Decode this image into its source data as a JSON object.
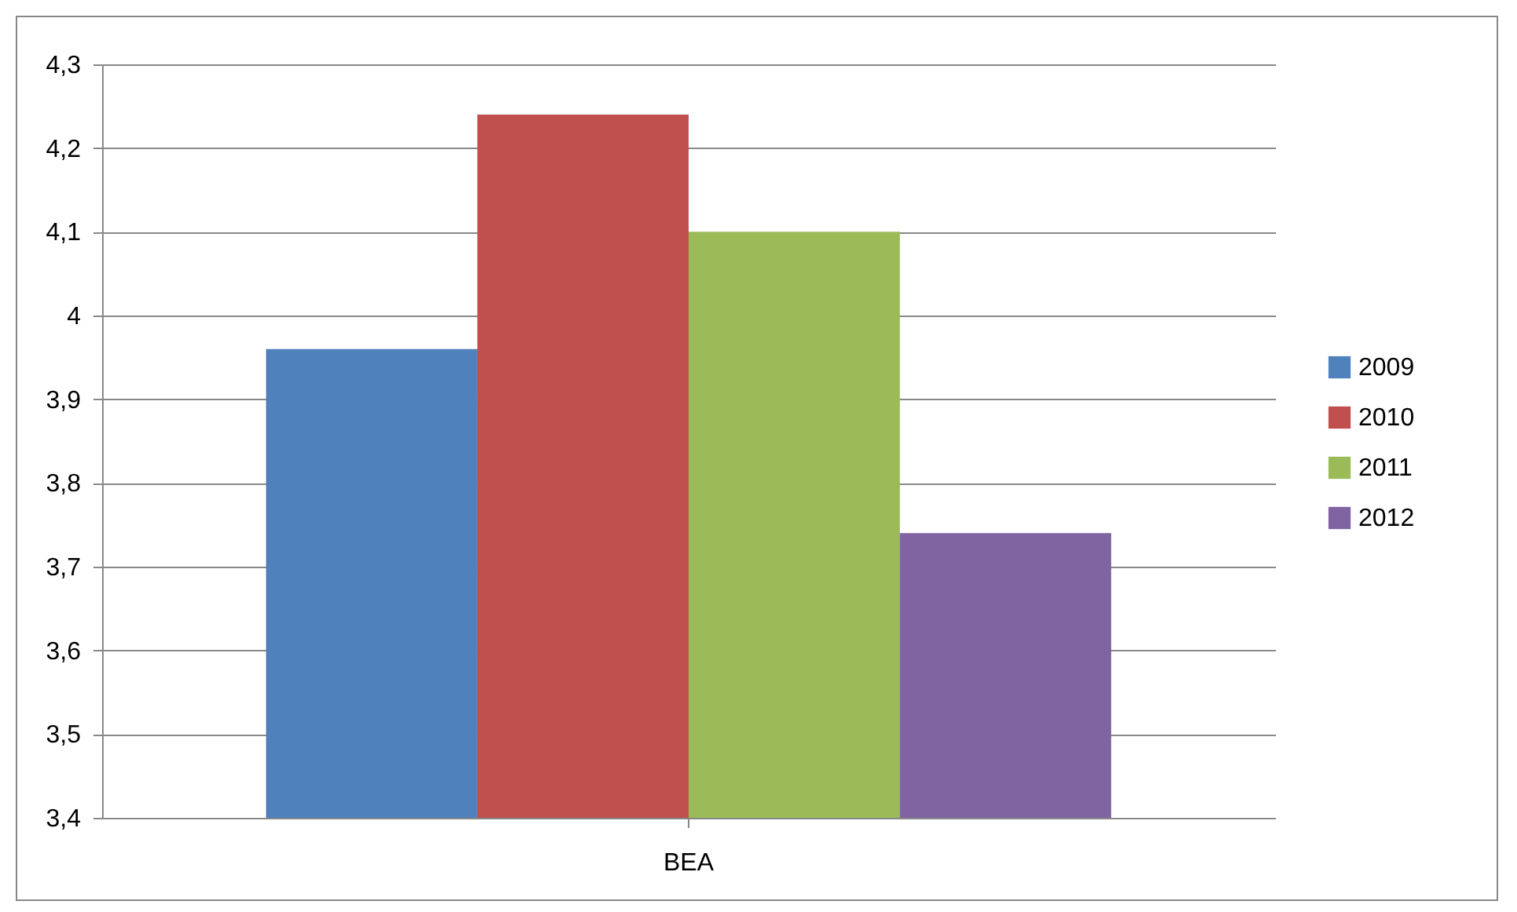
{
  "chart_data": {
    "type": "bar",
    "categories": [
      "BEA"
    ],
    "series": [
      {
        "name": "2009",
        "color": "#4f81bd",
        "values": [
          3.96
        ]
      },
      {
        "name": "2010",
        "color": "#c0504d",
        "values": [
          4.24
        ]
      },
      {
        "name": "2011",
        "color": "#9bbb59",
        "values": [
          4.1
        ]
      },
      {
        "name": "2012",
        "color": "#8064a2",
        "values": [
          3.74
        ]
      }
    ],
    "ylim": [
      3.4,
      4.3
    ],
    "yticks": [
      {
        "value": 3.4,
        "label": "3,4"
      },
      {
        "value": 3.5,
        "label": "3,5"
      },
      {
        "value": 3.6,
        "label": "3,6"
      },
      {
        "value": 3.7,
        "label": "3,7"
      },
      {
        "value": 3.8,
        "label": "3,8"
      },
      {
        "value": 3.9,
        "label": "3,9"
      },
      {
        "value": 4,
        "label": "4"
      },
      {
        "value": 4.1,
        "label": "4,1"
      },
      {
        "value": 4.2,
        "label": "4,2"
      },
      {
        "value": 4.3,
        "label": "4,3"
      }
    ],
    "grid": "y",
    "legend": "right"
  }
}
